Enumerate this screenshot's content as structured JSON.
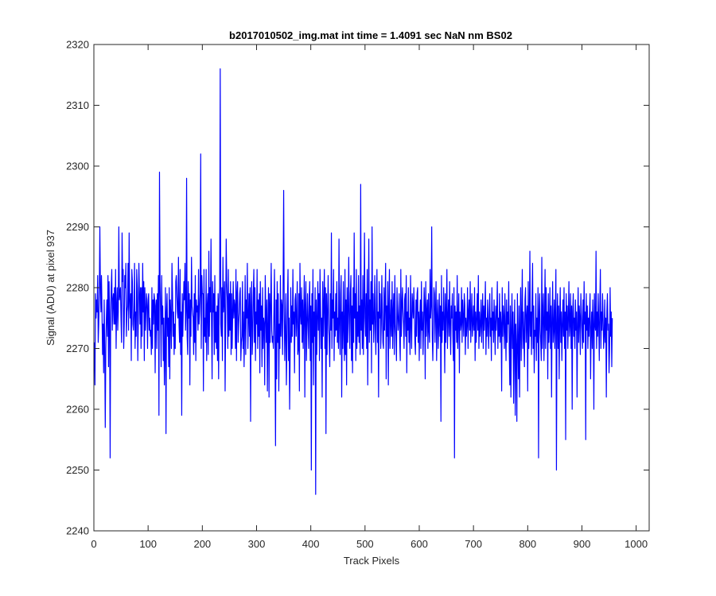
{
  "chart_data": {
    "type": "line",
    "title": "b2017010502_img.mat int time = 1.4091 sec  NaN nm BS02",
    "xlabel": "Track Pixels",
    "ylabel": "Signal (ADU) at pixel 937",
    "xlim": [
      0,
      1024
    ],
    "ylim": [
      2240,
      2320
    ],
    "xticks": [
      0,
      100,
      200,
      300,
      400,
      500,
      600,
      700,
      800,
      900,
      1000
    ],
    "yticks": [
      2240,
      2250,
      2260,
      2270,
      2280,
      2290,
      2300,
      2310,
      2320
    ],
    "grid": false,
    "legend": "none",
    "series": [
      {
        "color": "#0000ff",
        "x_start": 1,
        "x_step": 1,
        "values": [
          2271,
          2264,
          2279,
          2275,
          2278,
          2276,
          2282,
          2271,
          2274,
          2279,
          2290,
          2280,
          2276,
          2282,
          2276,
          2269,
          2274,
          2266,
          2278,
          2270,
          2257,
          2270,
          2275,
          2278,
          2272,
          2282,
          2267,
          2281,
          2275,
          2252,
          2276,
          2280,
          2283,
          2273,
          2278,
          2279,
          2274,
          2280,
          2274,
          2283,
          2270,
          2277,
          2280,
          2273,
          2276,
          2290,
          2278,
          2279,
          2280,
          2275,
          2271,
          2289,
          2281,
          2283,
          2270,
          2274,
          2282,
          2280,
          2284,
          2272,
          2276,
          2277,
          2284,
          2273,
          2289,
          2278,
          2275,
          2279,
          2268,
          2283,
          2281,
          2274,
          2273,
          2276,
          2284,
          2270,
          2276,
          2272,
          2283,
          2280,
          2268,
          2275,
          2284,
          2279,
          2274,
          2280,
          2270,
          2280,
          2272,
          2284,
          2276,
          2281,
          2268,
          2280,
          2273,
          2276,
          2279,
          2277,
          2270,
          2278,
          2279,
          2273,
          2275,
          2272,
          2273,
          2269,
          2280,
          2270,
          2278,
          2274,
          2279,
          2278,
          2266,
          2277,
          2278,
          2270,
          2279,
          2273,
          2282,
          2259,
          2299,
          2281,
          2276,
          2267,
          2282,
          2274,
          2277,
          2268,
          2275,
          2264,
          2270,
          2280,
          2256,
          2276,
          2279,
          2272,
          2275,
          2267,
          2280,
          2265,
          2278,
          2275,
          2270,
          2284,
          2279,
          2272,
          2276,
          2269,
          2274,
          2270,
          2281,
          2282,
          2279,
          2276,
          2275,
          2285,
          2274,
          2271,
          2283,
          2269,
          2276,
          2259,
          2279,
          2272,
          2277,
          2281,
          2278,
          2284,
          2273,
          2276,
          2298,
          2272,
          2269,
          2281,
          2275,
          2279,
          2264,
          2278,
          2272,
          2285,
          2277,
          2276,
          2275,
          2269,
          2279,
          2271,
          2282,
          2268,
          2278,
          2276,
          2277,
          2273,
          2283,
          2274,
          2276,
          2279,
          2302,
          2270,
          2282,
          2279,
          2279,
          2263,
          2283,
          2272,
          2275,
          2271,
          2283,
          2268,
          2277,
          2279,
          2269,
          2286,
          2272,
          2280,
          2276,
          2288,
          2274,
          2265,
          2281,
          2276,
          2279,
          2269,
          2282,
          2271,
          2276,
          2270,
          2277,
          2268,
          2279,
          2265,
          2278,
          2280,
          2316,
          2274,
          2272,
          2280,
          2268,
          2285,
          2276,
          2278,
          2281,
          2263,
          2274,
          2288,
          2281,
          2278,
          2270,
          2283,
          2272,
          2279,
          2273,
          2281,
          2269,
          2279,
          2270,
          2276,
          2281,
          2275,
          2278,
          2277,
          2270,
          2283,
          2268,
          2279,
          2281,
          2271,
          2274,
          2276,
          2279,
          2280,
          2268,
          2271,
          2272,
          2281,
          2270,
          2276,
          2267,
          2274,
          2282,
          2269,
          2278,
          2275,
          2284,
          2270,
          2275,
          2279,
          2272,
          2280,
          2258,
          2277,
          2281,
          2269,
          2272,
          2279,
          2283,
          2271,
          2280,
          2268,
          2276,
          2274,
          2283,
          2270,
          2278,
          2272,
          2279,
          2266,
          2281,
          2273,
          2277,
          2267,
          2280,
          2270,
          2275,
          2274,
          2264,
          2282,
          2276,
          2271,
          2278,
          2263,
          2274,
          2280,
          2262,
          2279,
          2271,
          2277,
          2284,
          2273,
          2271,
          2272,
          2270,
          2276,
          2283,
          2269,
          2254,
          2278,
          2265,
          2281,
          2271,
          2279,
          2263,
          2274,
          2270,
          2282,
          2272,
          2278,
          2277,
          2269,
          2281,
          2296,
          2276,
          2268,
          2273,
          2279,
          2264,
          2270,
          2278,
          2283,
          2268,
          2275,
          2260,
          2270,
          2280,
          2271,
          2277,
          2272,
          2283,
          2274,
          2276,
          2266,
          2278,
          2279,
          2272,
          2275,
          2281,
          2269,
          2270,
          2279,
          2263,
          2284,
          2276,
          2274,
          2280,
          2271,
          2278,
          2270,
          2276,
          2282,
          2262,
          2277,
          2281,
          2268,
          2274,
          2279,
          2274,
          2270,
          2278,
          2281,
          2268,
          2277,
          2250,
          2279,
          2271,
          2283,
          2264,
          2276,
          2272,
          2280,
          2246,
          2278,
          2269,
          2275,
          2281,
          2273,
          2279,
          2268,
          2283,
          2277,
          2270,
          2275,
          2262,
          2281,
          2272,
          2277,
          2283,
          2270,
          2280,
          2256,
          2279,
          2269,
          2276,
          2282,
          2274,
          2271,
          2267,
          2279,
          2273,
          2289,
          2270,
          2278,
          2275,
          2283,
          2268,
          2276,
          2272,
          2279,
          2273,
          2281,
          2271,
          2275,
          2270,
          2288,
          2274,
          2269,
          2279,
          2282,
          2262,
          2276,
          2270,
          2281,
          2273,
          2268,
          2283,
          2269,
          2278,
          2264,
          2280,
          2271,
          2276,
          2285,
          2274,
          2270,
          2279,
          2282,
          2268,
          2277,
          2266,
          2280,
          2271,
          2289,
          2275,
          2279,
          2268,
          2283,
          2270,
          2276,
          2272,
          2282,
          2271,
          2277,
          2269,
          2297,
          2273,
          2278,
          2270,
          2282,
          2269,
          2276,
          2289,
          2275,
          2272,
          2279,
          2270,
          2283,
          2264,
          2276,
          2288,
          2271,
          2278,
          2273,
          2281,
          2266,
          2290,
          2274,
          2279,
          2271,
          2275,
          2282,
          2273,
          2269,
          2278,
          2283,
          2271,
          2276,
          2262,
          2281,
          2275,
          2279,
          2270,
          2274,
          2282,
          2276,
          2271,
          2270,
          2280,
          2273,
          2278,
          2284,
          2265,
          2277,
          2272,
          2281,
          2264,
          2277,
          2283,
          2270,
          2274,
          2278,
          2272,
          2281,
          2270,
          2276,
          2279,
          2269,
          2282,
          2274,
          2272,
          2268,
          2280,
          2276,
          2273,
          2275,
          2279,
          2271,
          2268,
          2283,
          2272,
          2277,
          2280,
          2276,
          2274,
          2270,
          2278,
          2279,
          2272,
          2282,
          2266,
          2276,
          2273,
          2280,
          2271,
          2275,
          2269,
          2282,
          2274,
          2270,
          2279,
          2277,
          2275,
          2280,
          2276,
          2271,
          2269,
          2278,
          2272,
          2279,
          2280,
          2271,
          2276,
          2268,
          2275,
          2278,
          2270,
          2281,
          2273,
          2276,
          2269,
          2274,
          2280,
          2277,
          2265,
          2281,
          2272,
          2276,
          2278,
          2270,
          2279,
          2273,
          2271,
          2283,
          2275,
          2277,
          2290,
          2272,
          2268,
          2274,
          2280,
          2279,
          2271,
          2276,
          2281,
          2268,
          2275,
          2278,
          2270,
          2274,
          2279,
          2272,
          2277,
          2258,
          2282,
          2271,
          2276,
          2273,
          2280,
          2275,
          2266,
          2279,
          2271,
          2276,
          2283,
          2270,
          2275,
          2278,
          2272,
          2281,
          2274,
          2269,
          2277,
          2275,
          2279,
          2272,
          2268,
          2280,
          2252,
          2277,
          2273,
          2276,
          2271,
          2282,
          2270,
          2275,
          2279,
          2266,
          2276,
          2273,
          2274,
          2280,
          2271,
          2278,
          2275,
          2272,
          2279,
          2277,
          2269,
          2275,
          2272,
          2274,
          2280,
          2270,
          2276,
          2278,
          2273,
          2281,
          2271,
          2275,
          2279,
          2272,
          2274,
          2277,
          2273,
          2280,
          2268,
          2276,
          2271,
          2275,
          2279,
          2273,
          2282,
          2270,
          2276,
          2272,
          2274,
          2278,
          2271,
          2275,
          2279,
          2270,
          2277,
          2273,
          2276,
          2281,
          2269,
          2275,
          2272,
          2278,
          2274,
          2270,
          2276,
          2279,
          2272,
          2275,
          2268,
          2280,
          2273,
          2276,
          2271,
          2278,
          2274,
          2269,
          2277,
          2273,
          2276,
          2281,
          2270,
          2275,
          2272,
          2279,
          2271,
          2276,
          2274,
          2263,
          2280,
          2272,
          2277,
          2275,
          2270,
          2279,
          2273,
          2268,
          2278,
          2271,
          2276,
          2274,
          2281,
          2270,
          2264,
          2277,
          2262,
          2273,
          2279,
          2270,
          2276,
          2261,
          2272,
          2278,
          2259,
          2274,
          2270,
          2258,
          2279,
          2271,
          2265,
          2277,
          2262,
          2273,
          2280,
          2268,
          2275,
          2283,
          2270,
          2276,
          2272,
          2267,
          2278,
          2280,
          2271,
          2275,
          2277,
          2263,
          2281,
          2270,
          2274,
          2286,
          2272,
          2276,
          2269,
          2278,
          2284,
          2270,
          2277,
          2266,
          2273,
          2272,
          2279,
          2268,
          2275,
          2271,
          2280,
          2252,
          2276,
          2279,
          2273,
          2271,
          2268,
          2285,
          2270,
          2276,
          2279,
          2268,
          2274,
          2283,
          2270,
          2280,
          2273,
          2276,
          2265,
          2279,
          2271,
          2274,
          2280,
          2270,
          2277,
          2262,
          2275,
          2281,
          2271,
          2273,
          2278,
          2270,
          2276,
          2283,
          2250,
          2274,
          2279,
          2270,
          2277,
          2265,
          2275,
          2280,
          2271,
          2276,
          2268,
          2274,
          2278,
          2272,
          2280,
          2270,
          2276,
          2255,
          2279,
          2273,
          2277,
          2270,
          2275,
          2281,
          2272,
          2274,
          2279,
          2270,
          2277,
          2260,
          2276,
          2279,
          2272,
          2275,
          2270,
          2278,
          2273,
          2276,
          2262,
          2274,
          2280,
          2271,
          2277,
          2275,
          2269,
          2279,
          2276,
          2273,
          2270,
          2278,
          2271,
          2281,
          2274,
          2276,
          2255,
          2279,
          2273,
          2277,
          2270,
          2275,
          2272,
          2276,
          2279,
          2265,
          2273,
          2276,
          2270,
          2278,
          2274,
          2260,
          2279,
          2274,
          2273,
          2286,
          2270,
          2276,
          2272,
          2279,
          2274,
          2268,
          2277,
          2283,
          2270,
          2276,
          2273,
          2279,
          2275,
          2270,
          2272,
          2278,
          2271,
          2275,
          2262,
          2276,
          2279,
          2273,
          2274,
          2266,
          2270,
          2280,
          2272,
          2276,
          2267,
          2275
        ]
      }
    ]
  }
}
